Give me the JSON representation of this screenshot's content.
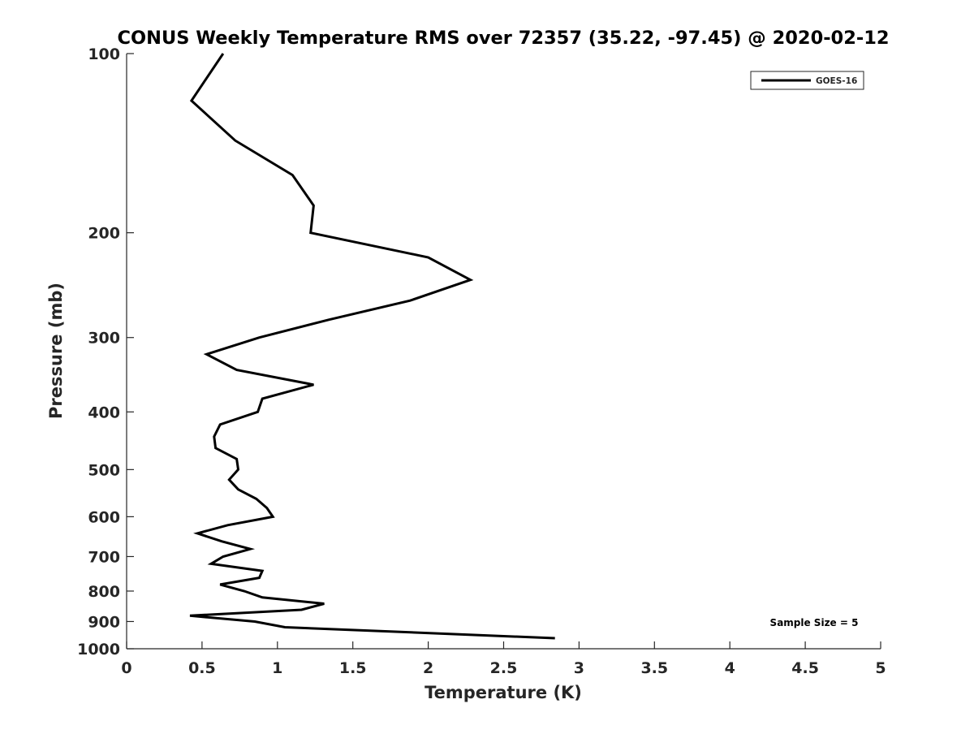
{
  "chart_data": {
    "type": "line",
    "title": "CONUS Weekly Temperature RMS over 72357 (35.22, -97.45) @ 2020-02-12",
    "xlabel": "Temperature (K)",
    "ylabel": "Pressure (mb)",
    "xlim": [
      0,
      5
    ],
    "ylim": [
      100,
      1000
    ],
    "yscale": "log",
    "yreversed": true,
    "grid": false,
    "xticks": [
      "0",
      "0.5",
      "1",
      "1.5",
      "2",
      "2.5",
      "3",
      "3.5",
      "4",
      "4.5",
      "5"
    ],
    "yticks": [
      "100",
      "200",
      "300",
      "400",
      "500",
      "600",
      "700",
      "800",
      "900",
      "1000"
    ],
    "legend": {
      "placement": "top-right",
      "entries": [
        "GOES-16"
      ]
    },
    "annotation": "Sample Size = 5",
    "series": [
      {
        "name": "GOES-16",
        "color": "#000000",
        "pressure": [
          100,
          120,
          140,
          160,
          180,
          200,
          220,
          240,
          260,
          280,
          300,
          320,
          340,
          360,
          380,
          400,
          420,
          440,
          460,
          480,
          500,
          520,
          540,
          560,
          580,
          600,
          620,
          640,
          660,
          680,
          700,
          720,
          740,
          760,
          780,
          800,
          820,
          840,
          860,
          880,
          900,
          920,
          960
        ],
        "temperature_rms": [
          0.64,
          0.43,
          0.72,
          1.1,
          1.24,
          1.22,
          2.0,
          2.28,
          1.88,
          1.34,
          0.88,
          0.53,
          0.73,
          1.24,
          0.9,
          0.87,
          0.62,
          0.58,
          0.59,
          0.73,
          0.74,
          0.68,
          0.74,
          0.86,
          0.93,
          0.97,
          0.67,
          0.47,
          0.63,
          0.82,
          0.64,
          0.56,
          0.9,
          0.88,
          0.62,
          0.78,
          0.9,
          1.31,
          1.16,
          0.42,
          0.85,
          1.05,
          2.84
        ]
      }
    ]
  }
}
